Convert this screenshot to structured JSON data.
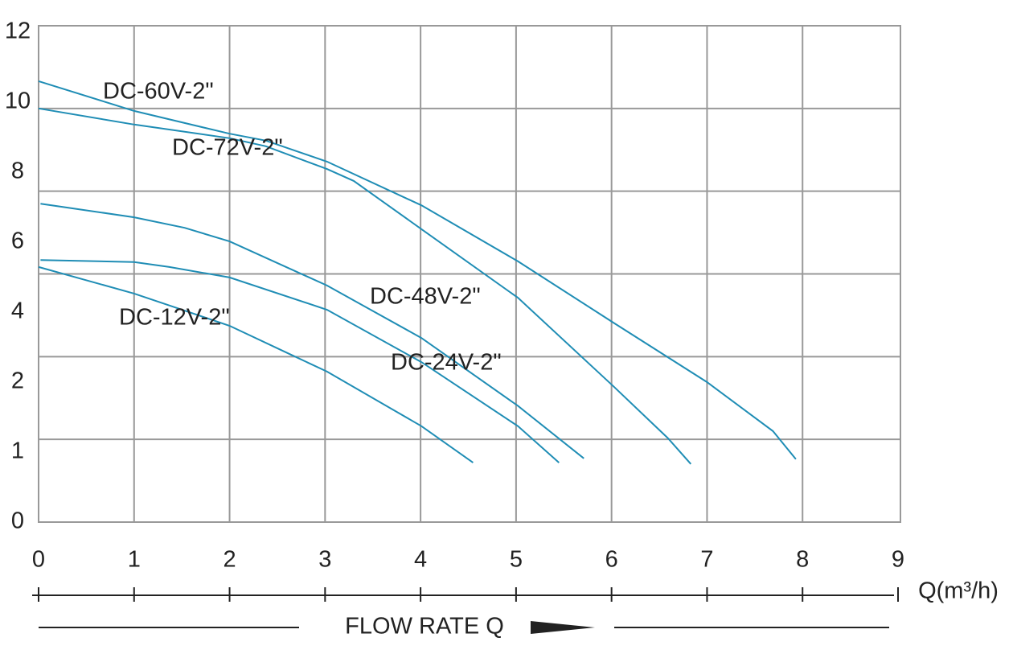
{
  "chart_data": {
    "type": "line",
    "x_label": "Q(m³/h)",
    "footer_label": "FLOW RATE Q",
    "xlim": [
      0,
      9
    ],
    "xticks": [
      0,
      1,
      2,
      3,
      4,
      5,
      6,
      7,
      8,
      9
    ],
    "ylim": [
      0,
      12
    ],
    "yticks": [
      12,
      10,
      8,
      6,
      4,
      2,
      1,
      0
    ],
    "grid": true,
    "series": [
      {
        "name": "DC-60V-2\"",
        "color": "#1f8db5",
        "x": [
          0,
          1,
          2,
          2.38,
          3.02,
          4.01,
          5.02,
          6.02,
          7.0,
          7.69,
          7.93
        ],
        "values": [
          10.6,
          9.75,
          9.1,
          8.9,
          8.3,
          7.05,
          5.45,
          3.7,
          2.0,
          1.3,
          0.9
        ]
      },
      {
        "name": "DC-72V-2\"",
        "color": "#1f8db5",
        "x": [
          0,
          1,
          2,
          2.38,
          3.02,
          3.3,
          4.01,
          5.02,
          6.02,
          6.59,
          6.83
        ],
        "values": [
          9.82,
          9.36,
          8.97,
          8.74,
          8.09,
          7.75,
          6.37,
          4.41,
          1.94,
          1.2,
          0.83
        ]
      },
      {
        "name": "DC-48V-2\"",
        "color": "#1f8db5",
        "x": [
          0.02,
          1,
          1.53,
          2,
          3.02,
          4.01,
          5.02,
          5.71
        ],
        "values": [
          7.1,
          6.71,
          6.41,
          6.02,
          4.76,
          3.26,
          1.66,
          0.91
        ]
      },
      {
        "name": "DC-24V-2\"",
        "color": "#1f8db5",
        "x": [
          0.02,
          1,
          1.37,
          2,
          3.02,
          4.01,
          5.02,
          5.45
        ],
        "values": [
          5.49,
          5.43,
          5.29,
          4.99,
          4.07,
          2.57,
          1.37,
          0.85
        ]
      },
      {
        "name": "DC-12V-2\"",
        "color": "#1f8db5",
        "x": [
          0,
          1,
          2,
          2.63,
          3.02,
          4.01,
          4.55
        ],
        "values": [
          5.29,
          4.53,
          3.61,
          2.8,
          2.3,
          1.37,
          0.85
        ]
      }
    ]
  }
}
